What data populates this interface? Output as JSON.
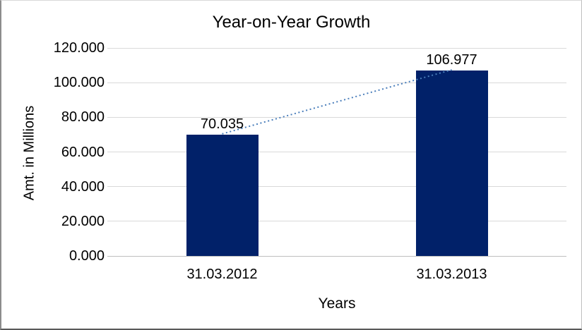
{
  "frame": {
    "background": "#ffffff",
    "border_dark": "#595959",
    "border_light": "#d9d9d9"
  },
  "chart_data": {
    "type": "bar",
    "title": "Year-on-Year Growth",
    "xlabel": "Years",
    "ylabel": "Amt. in Millions",
    "categories": [
      "31.03.2012",
      "31.03.2013"
    ],
    "values": [
      70.035,
      106.977
    ],
    "data_labels": [
      "70.035",
      "106.977"
    ],
    "yticks": {
      "values": [
        0,
        20,
        40,
        60,
        80,
        100,
        120
      ],
      "labels": [
        "0.000",
        "20.000",
        "40.000",
        "60.000",
        "80.000",
        "100.000",
        "120.000"
      ]
    },
    "ylim": [
      0,
      120
    ],
    "grid": true,
    "legend": "none",
    "trendline": {
      "style": "dotted",
      "connects": [
        "31.03.2012",
        "31.03.2013"
      ]
    },
    "colors": {
      "bar": "#012169",
      "trendline": "#4a7ebb",
      "gridline": "#d9d9d9",
      "axisline": "#bfbfbf",
      "text": "#000000"
    }
  }
}
